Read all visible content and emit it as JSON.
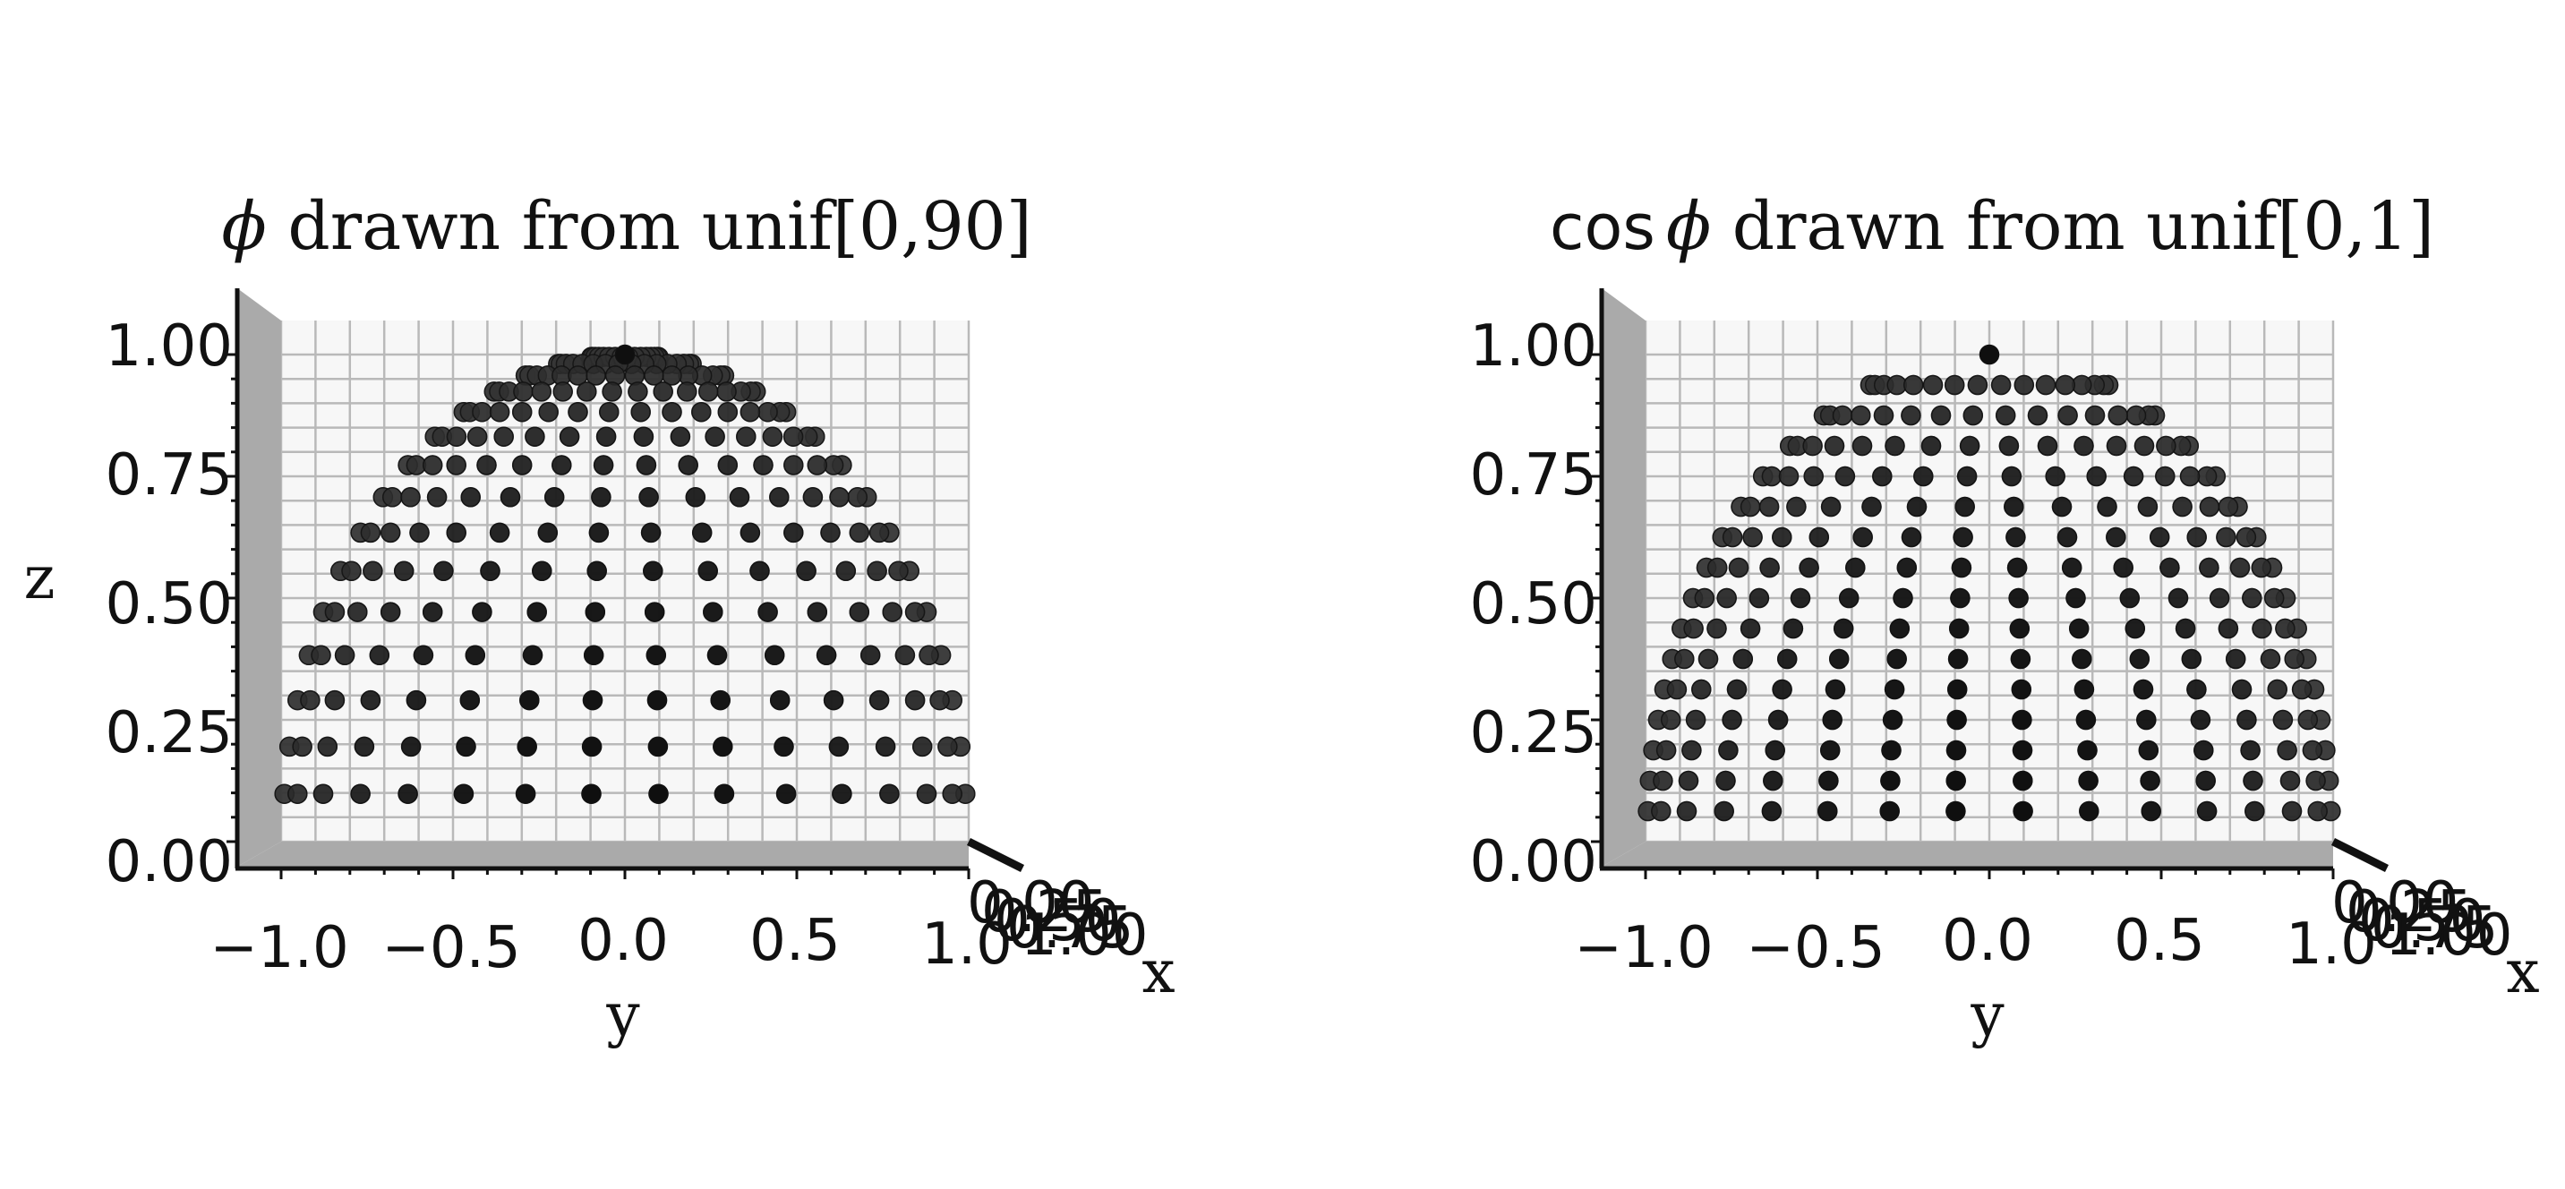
{
  "chart_data": [
    {
      "type": "scatter",
      "projection": "3d",
      "title_symbol": "ϕ",
      "title_text": " drawn from unif[0,90]",
      "xlabel": "x",
      "ylabel": "y",
      "zlabel": "z",
      "y_ticks": [
        "−1.0",
        "−0.5",
        "0.0",
        "0.5",
        "1.0"
      ],
      "z_ticks": [
        "0.00",
        "0.25",
        "0.50",
        "0.75",
        "1.00"
      ],
      "x_ticks": [
        "0.00",
        "0.25",
        "0.50",
        "0.75",
        "1.00"
      ],
      "ylim": [
        -1,
        1
      ],
      "zlim": [
        0,
        1
      ],
      "grid": true,
      "view": "elevation 0°, viewed along +x; x-axis nearly edge-on",
      "sampling": "uniform in elevation angle ϕ",
      "elevation_deg": [
        5.625,
        11.25,
        16.875,
        22.5,
        28.125,
        33.75,
        39.375,
        45,
        50.625,
        56.25,
        61.875,
        67.5,
        73.125,
        78.75,
        84.375,
        90
      ],
      "azimuth_count": 32,
      "marker_color": "#111111"
    },
    {
      "type": "scatter",
      "projection": "3d",
      "title_prefix": "cos",
      "title_symbol": "ϕ",
      "title_text": " drawn from unif[0,1]",
      "xlabel": "x",
      "ylabel": "y",
      "zlabel": "",
      "y_ticks": [
        "−1.0",
        "−0.5",
        "0.0",
        "0.5",
        "1.0"
      ],
      "z_ticks": [
        "0.00",
        "0.25",
        "0.50",
        "0.75",
        "1.00"
      ],
      "x_ticks": [
        "0.00",
        "0.25",
        "0.50",
        "0.75",
        "1.00"
      ],
      "ylim": [
        -1,
        1
      ],
      "zlim": [
        0,
        1
      ],
      "grid": true,
      "view": "elevation 0°, viewed along +x; x-axis nearly edge-on",
      "sampling": "uniform in cos ϕ",
      "elevation_deg": [
        3.58,
        7.18,
        10.81,
        14.48,
        18.21,
        22.02,
        25.94,
        30,
        34.23,
        38.68,
        43.43,
        48.59,
        54.34,
        61.04,
        69.64,
        90
      ],
      "azimuth_count": 32,
      "marker_color": "#111111"
    }
  ]
}
